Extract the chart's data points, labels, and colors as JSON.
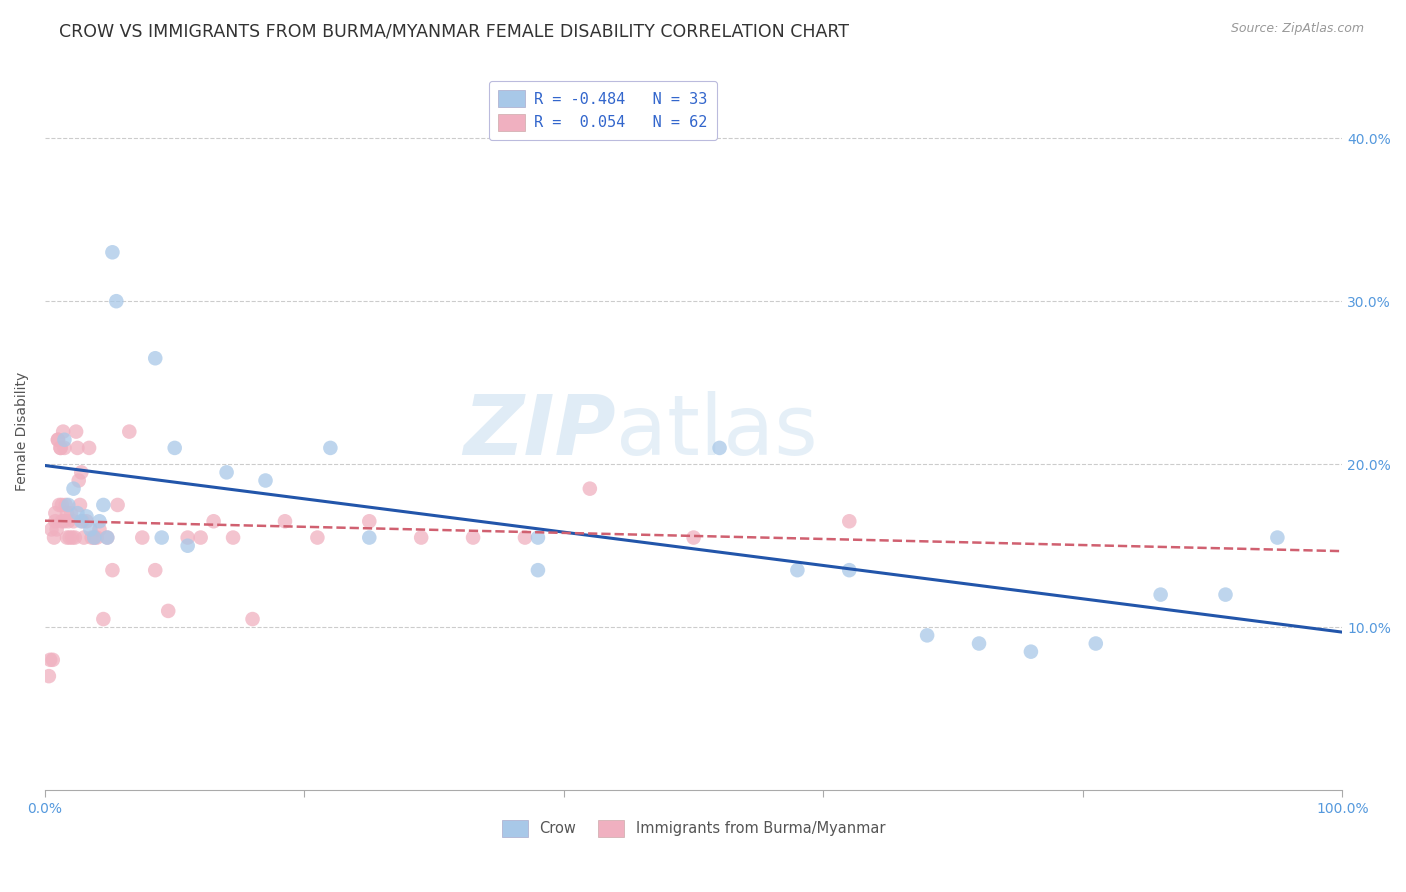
{
  "title": "CROW VS IMMIGRANTS FROM BURMA/MYANMAR FEMALE DISABILITY CORRELATION CHART",
  "source": "Source: ZipAtlas.com",
  "ylabel": "Female Disability",
  "legend_crow_r": "-0.484",
  "legend_crow_n": "33",
  "legend_burma_r": "0.054",
  "legend_burma_n": "62",
  "crow_color": "#a8c8e8",
  "crow_line_color": "#2255aa",
  "burma_color": "#f0b0c0",
  "burma_line_color": "#d06070",
  "background_color": "#ffffff",
  "grid_color": "#cccccc",
  "tick_color": "#5599dd",
  "crow_points_x": [
    0.015,
    0.018,
    0.022,
    0.025,
    0.028,
    0.032,
    0.035,
    0.038,
    0.042,
    0.045,
    0.048,
    0.052,
    0.055,
    0.085,
    0.09,
    0.1,
    0.11,
    0.14,
    0.17,
    0.22,
    0.25,
    0.38,
    0.38,
    0.52,
    0.58,
    0.62,
    0.68,
    0.72,
    0.76,
    0.81,
    0.86,
    0.91,
    0.95
  ],
  "crow_points_y": [
    0.215,
    0.175,
    0.185,
    0.17,
    0.165,
    0.168,
    0.16,
    0.155,
    0.165,
    0.175,
    0.155,
    0.33,
    0.3,
    0.265,
    0.155,
    0.21,
    0.15,
    0.195,
    0.19,
    0.21,
    0.155,
    0.135,
    0.155,
    0.21,
    0.135,
    0.135,
    0.095,
    0.09,
    0.085,
    0.09,
    0.12,
    0.12,
    0.155
  ],
  "burma_points_x": [
    0.003,
    0.004,
    0.005,
    0.006,
    0.007,
    0.008,
    0.008,
    0.009,
    0.01,
    0.01,
    0.011,
    0.012,
    0.012,
    0.013,
    0.013,
    0.014,
    0.015,
    0.015,
    0.016,
    0.017,
    0.017,
    0.018,
    0.019,
    0.02,
    0.021,
    0.022,
    0.023,
    0.024,
    0.025,
    0.026,
    0.027,
    0.028,
    0.029,
    0.03,
    0.032,
    0.034,
    0.036,
    0.038,
    0.04,
    0.042,
    0.045,
    0.048,
    0.052,
    0.056,
    0.065,
    0.075,
    0.085,
    0.095,
    0.11,
    0.12,
    0.13,
    0.145,
    0.16,
    0.185,
    0.21,
    0.25,
    0.29,
    0.33,
    0.37,
    0.42,
    0.5,
    0.62
  ],
  "burma_points_y": [
    0.07,
    0.08,
    0.16,
    0.08,
    0.155,
    0.17,
    0.165,
    0.16,
    0.215,
    0.215,
    0.175,
    0.21,
    0.21,
    0.175,
    0.165,
    0.22,
    0.21,
    0.165,
    0.175,
    0.17,
    0.155,
    0.165,
    0.155,
    0.17,
    0.155,
    0.165,
    0.155,
    0.22,
    0.21,
    0.19,
    0.175,
    0.195,
    0.165,
    0.155,
    0.165,
    0.21,
    0.155,
    0.155,
    0.155,
    0.16,
    0.105,
    0.155,
    0.135,
    0.175,
    0.22,
    0.155,
    0.135,
    0.11,
    0.155,
    0.155,
    0.165,
    0.155,
    0.105,
    0.165,
    0.155,
    0.165,
    0.155,
    0.155,
    0.155,
    0.185,
    0.155,
    0.165
  ],
  "xmin": 0.0,
  "xmax": 1.0,
  "ymin": 0.0,
  "ymax": 0.44,
  "yticks": [
    0.1,
    0.2,
    0.3,
    0.4
  ],
  "ytick_labels": [
    "10.0%",
    "20.0%",
    "30.0%",
    "40.0%"
  ],
  "title_fontsize": 12.5,
  "axis_label_fontsize": 10,
  "tick_fontsize": 10,
  "legend_fontsize": 10.5,
  "marker_size": 110,
  "marker_alpha": 0.75
}
